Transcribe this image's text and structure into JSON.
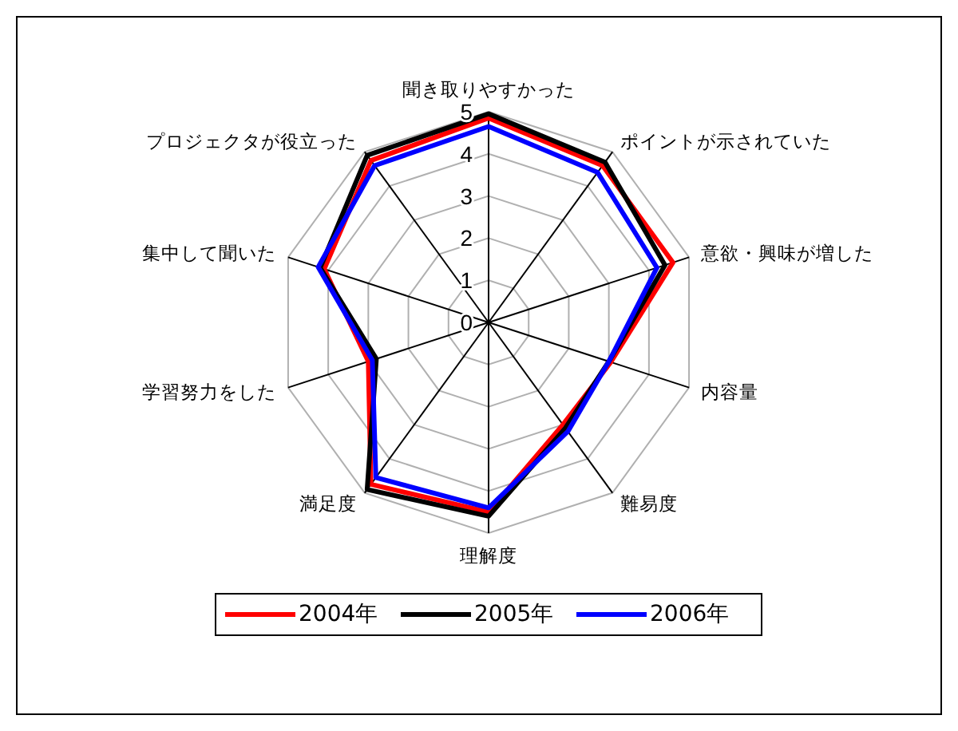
{
  "chart_data": {
    "type": "radar",
    "categories": [
      "聞き取りやすかった",
      "ポイントが示されていた",
      "意欲・興味が増した",
      "内容量",
      "難易度",
      "理解度",
      "満足度",
      "学習努力をした",
      "集中して聞いた",
      "プロジェクタが役立った"
    ],
    "series": [
      {
        "name": "2004年",
        "color": "#ff0000",
        "values": [
          4.85,
          4.6,
          4.6,
          3.05,
          3.0,
          4.5,
          4.75,
          3.0,
          4.1,
          4.75
        ]
      },
      {
        "name": "2005年",
        "color": "#000000",
        "values": [
          4.95,
          4.7,
          4.4,
          3.0,
          3.1,
          4.6,
          4.9,
          2.8,
          4.2,
          4.9
        ]
      },
      {
        "name": "2006年",
        "color": "#0000ff",
        "values": [
          4.65,
          4.4,
          4.2,
          3.0,
          3.2,
          4.4,
          4.55,
          2.9,
          4.25,
          4.6
        ]
      }
    ],
    "ylim": [
      0,
      5
    ],
    "yticks": [
      0,
      1,
      2,
      3,
      4,
      5
    ],
    "grid": true,
    "legend": "bottom"
  }
}
